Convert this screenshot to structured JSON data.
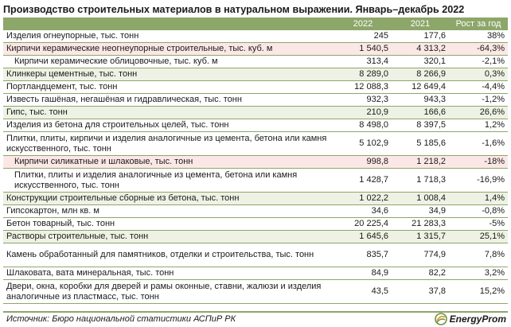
{
  "title": "Производство строительных материалов в натуральном выражении. Январь–декабрь 2022",
  "header": {
    "col1": "",
    "col2": "2022",
    "col3": "2021",
    "col4": "Рост за год"
  },
  "rows": [
    {
      "name": "Изделия огнеупорные, тыс. тонн",
      "v2022": "245",
      "v2021": "177,6",
      "growth": "38%",
      "style": "white",
      "height": 16
    },
    {
      "name": "Кирпичи керамические неогнеупорные строительные, тыс. куб. м",
      "v2022": "1 540,5",
      "v2021": "4 313,2",
      "growth": "-64,3%",
      "style": "sub",
      "height": 16
    },
    {
      "name": "Кирпичи керамические облицовочные, тыс. куб. м",
      "v2022": "313,4",
      "v2021": "320,1",
      "growth": "-2,1%",
      "style": "white",
      "indent": true,
      "height": 16
    },
    {
      "name": "Клинкеры цементные, тыс. тонн",
      "v2022": "8 289,0",
      "v2021": "8 266,9",
      "growth": "0,3%",
      "style": "shade",
      "height": 16
    },
    {
      "name": "Портландцемент, тыс. тонн",
      "v2022": "12 088,3",
      "v2021": "12 649,4",
      "growth": "-4,4%",
      "style": "white",
      "height": 16
    },
    {
      "name": "Известь гашёная, негашёная и гидравлическая, тыс. тонн",
      "v2022": "932,3",
      "v2021": "943,3",
      "growth": "-1,2%",
      "style": "white",
      "height": 16
    },
    {
      "name": "Гипс, тыс. тонн",
      "v2022": "210,9",
      "v2021": "166,6",
      "growth": "26,6%",
      "style": "shade",
      "height": 16
    },
    {
      "name": "Изделия из бетона для строительных целей, тыс. тонн",
      "v2022": "8 498,0",
      "v2021": "8 397,5",
      "growth": "1,2%",
      "style": "white",
      "height": 16
    },
    {
      "name": "Плитки, плиты, кирпичи и изделия аналогичные из цемента, бетона или камня искусственного, тыс. тонн",
      "v2022": "5 102,9",
      "v2021": "5 185,6",
      "growth": "-1,6%",
      "style": "white",
      "height": 30
    },
    {
      "name": "Кирпичи силикатные и шлаковые, тыс. тонн",
      "v2022": "998,8",
      "v2021": "1 218,2",
      "growth": "-18%",
      "style": "sub",
      "indent": true,
      "height": 16
    },
    {
      "name": "Плитки, плиты и изделия аналогичные из цемента, бетона или камня искусственного, тыс. тонн",
      "v2022": "1 428,7",
      "v2021": "1 718,3",
      "growth": "-16,9%",
      "style": "white",
      "indent": true,
      "height": 30
    },
    {
      "name": "Конструкции строительные сборные из бетона, тыс. тонн",
      "v2022": "1 022,2",
      "v2021": "1 008,4",
      "growth": "1,4%",
      "style": "shade",
      "height": 16
    },
    {
      "name": "Гипсокартон, млн кв. м",
      "v2022": "34,6",
      "v2021": "34,9",
      "growth": "-0,8%",
      "style": "white",
      "height": 16
    },
    {
      "name": "Бетон товарный, тыс. тонн",
      "v2022": "20 225,4",
      "v2021": "21 283,3",
      "growth": "-5%",
      "style": "white",
      "height": 16
    },
    {
      "name": "Растворы строительные, тыс. тонн",
      "v2022": "1 645,6",
      "v2021": "1 315,7",
      "growth": "25,1%",
      "style": "shade",
      "height": 16
    },
    {
      "name": "Камень обработанный для памятников, отделки и строительства, тыс. тонн",
      "v2022": "835,7",
      "v2021": "774,9",
      "growth": "7,8%",
      "style": "white",
      "height": 30
    },
    {
      "name": "Шлаковата, вата минеральная, тыс. тонн",
      "v2022": "84,9",
      "v2021": "82,2",
      "growth": "3,2%",
      "style": "white",
      "height": 16
    },
    {
      "name": "Двери, окна, коробки для дверей и рамы оконные, ставни, жалюзи и изделия аналогичные из пластмасс, тыс. тонн",
      "v2022": "43,5",
      "v2021": "37,8",
      "growth": "15,2%",
      "style": "white",
      "height": 30
    }
  ],
  "source": "Источник: Бюро национальной статистики АСПиР РК",
  "logo": "EnergyProm",
  "colors": {
    "accent": "#8da66a",
    "shade": "#eef2e4",
    "highlight": "#fbe8e6"
  }
}
